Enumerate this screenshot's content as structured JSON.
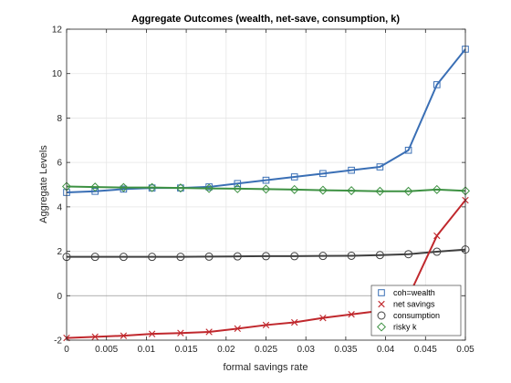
{
  "chart_data": {
    "type": "line",
    "title": "Aggregate Outcomes (wealth, net-save, consumption, k)",
    "xlabel": "formal savings rate",
    "ylabel": "Aggregate Levels",
    "xlim": [
      0,
      0.05
    ],
    "ylim": [
      -2,
      12
    ],
    "xticks": [
      0,
      0.005,
      0.01,
      0.015,
      0.02,
      0.025,
      0.03,
      0.035,
      0.04,
      0.045,
      0.05
    ],
    "xtick_labels": [
      "0",
      "0.005",
      "0.01",
      "0.015",
      "0.02",
      "0.025",
      "0.03",
      "0.035",
      "0.04",
      "0.045",
      "0.05"
    ],
    "yticks": [
      -2,
      0,
      2,
      4,
      6,
      8,
      10,
      12
    ],
    "ytick_labels": [
      "-2",
      "0",
      "2",
      "4",
      "6",
      "8",
      "10",
      "12"
    ],
    "grid": true,
    "zero_line": true,
    "legend_position": "bottom-right",
    "x": [
      0,
      0.00357,
      0.00714,
      0.01071,
      0.01429,
      0.01786,
      0.02143,
      0.025,
      0.02857,
      0.03214,
      0.03571,
      0.03929,
      0.04286,
      0.04643,
      0.05
    ],
    "series": [
      {
        "name": "coh=wealth",
        "color": "#3a6fb5",
        "marker": "square",
        "values": [
          4.65,
          4.7,
          4.8,
          4.85,
          4.85,
          4.9,
          5.05,
          5.2,
          5.35,
          5.5,
          5.65,
          5.8,
          6.55,
          9.5,
          11.1
        ]
      },
      {
        "name": "net savings",
        "color": "#c0282d",
        "marker": "x",
        "values": [
          -1.9,
          -1.85,
          -1.8,
          -1.72,
          -1.68,
          -1.63,
          -1.48,
          -1.32,
          -1.2,
          -1.0,
          -0.84,
          -0.68,
          -0.05,
          2.7,
          4.3
        ]
      },
      {
        "name": "consumption",
        "color": "#404040",
        "marker": "circle",
        "values": [
          1.75,
          1.75,
          1.75,
          1.75,
          1.75,
          1.76,
          1.77,
          1.78,
          1.78,
          1.79,
          1.8,
          1.83,
          1.87,
          1.98,
          2.08
        ]
      },
      {
        "name": "risky k",
        "color": "#3d9142",
        "marker": "diamond",
        "values": [
          4.92,
          4.89,
          4.87,
          4.87,
          4.85,
          4.83,
          4.82,
          4.8,
          4.78,
          4.75,
          4.73,
          4.7,
          4.7,
          4.78,
          4.72
        ]
      }
    ]
  }
}
